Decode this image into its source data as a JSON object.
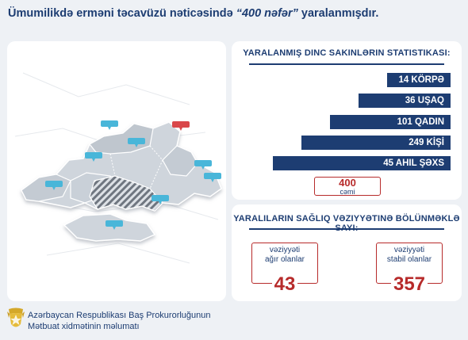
{
  "headline": {
    "prefix": "Ümumilikdə erməni təcavüzü nəticəsində ",
    "highlight": "“400 nəfər”",
    "suffix": " yaralanmışdır."
  },
  "stats": {
    "title": "Yaralanmış dinc sakinlərin statistikası:",
    "total_value": "400",
    "total_label": "cəmi"
  },
  "chart_data": {
    "type": "bar",
    "orientation": "horizontal",
    "title": "Yaralanmış dinc sakinlərin statistikası:",
    "categories": [
      "KÖRPƏ",
      "UŞAQ",
      "QADIN",
      "KİŞİ",
      "AHIL ŞƏXS"
    ],
    "values": [
      14,
      36,
      101,
      249,
      45
    ],
    "bar_labels": [
      "14 KÖRPƏ",
      "36 UŞAQ",
      "101 QADIN",
      "249 KİŞİ",
      "45 AHIL ŞƏXS"
    ],
    "bar_color": "#1d3d72",
    "total": 400,
    "grid": false
  },
  "health": {
    "title": "Yaralıların sağlıq vəziyyətinə bölünməklə sayı:",
    "severe": {
      "label_line1": "vəziyyəti",
      "label_line2": "ağır olanlar",
      "value": "43"
    },
    "stable": {
      "label_line1": "vəziyyəti",
      "label_line2": "stabil olanlar",
      "value": "357"
    }
  },
  "footer": {
    "line1": "Azərbaycan Respublikası Baş Prokurorluğunun",
    "line2": "Mətbuat xidmətinin məlumatı",
    "logo_icon": "prosecutor-emblem-icon"
  },
  "map": {
    "icon": "region-map-icon",
    "land_color": "#cfd5dc",
    "marker_color": "#49b6d9",
    "alert_marker_color": "#d9474a"
  },
  "colors": {
    "primary": "#1d3d72",
    "accent_red": "#b72b2b",
    "background": "#eef1f5",
    "panel": "#ffffff"
  }
}
